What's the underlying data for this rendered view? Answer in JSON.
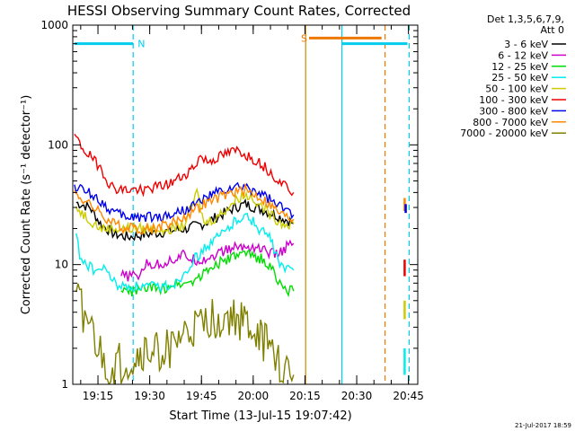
{
  "chart_data": {
    "type": "line",
    "title": "HESSI Observing Summary Count Rates, Corrected",
    "xlabel": "Start Time (13-Jul-15 19:07:42)",
    "ylabel": "Corrected Count Rate (s⁻¹ detector⁻¹)",
    "yscale": "log",
    "ylim": [
      1,
      1000
    ],
    "xlim_minutes": [
      0,
      100
    ],
    "x_start": "19:07:42",
    "x_ticks": [
      {
        "label": "19:15",
        "t": 7.3
      },
      {
        "label": "19:30",
        "t": 22.3
      },
      {
        "label": "19:45",
        "t": 37.3
      },
      {
        "label": "20:00",
        "t": 52.3
      },
      {
        "label": "20:15",
        "t": 67.3
      },
      {
        "label": "20:30",
        "t": 82.3
      },
      {
        "label": "20:45",
        "t": 97.3
      }
    ],
    "y_ticks": [
      {
        "label": "1",
        "v": 1
      },
      {
        "label": "10",
        "v": 10
      },
      {
        "label": "100",
        "v": 100
      },
      {
        "label": "1000",
        "v": 1000
      }
    ],
    "legend_header": [
      "Det 1,3,5,6,7,9,",
      "Att 0"
    ],
    "legend_placement": "right",
    "series": [
      {
        "name": "3 - 6 keV",
        "color": "#000000",
        "points": [
          [
            1,
            33
          ],
          [
            5,
            30
          ],
          [
            8,
            22
          ],
          [
            12,
            18
          ],
          [
            16,
            17
          ],
          [
            22,
            18
          ],
          [
            28,
            19
          ],
          [
            33,
            20
          ],
          [
            38,
            22
          ],
          [
            43,
            26
          ],
          [
            47,
            30
          ],
          [
            50,
            32
          ],
          [
            53,
            30
          ],
          [
            56,
            28
          ],
          [
            60,
            25
          ],
          [
            63,
            23
          ],
          [
            64,
            22
          ]
        ]
      },
      {
        "name": "6 - 12 keV",
        "color": "#cc00cc",
        "points": [
          [
            14,
            8
          ],
          [
            16,
            8
          ],
          [
            18,
            8
          ],
          [
            19,
            8
          ],
          [
            21,
            10
          ],
          [
            25,
            10
          ],
          [
            29,
            11
          ],
          [
            32,
            12
          ],
          [
            35,
            11
          ],
          [
            38,
            11
          ],
          [
            41,
            12
          ],
          [
            44,
            13
          ],
          [
            47,
            14
          ],
          [
            50,
            14
          ],
          [
            53,
            14
          ],
          [
            56,
            13
          ],
          [
            59,
            12
          ],
          [
            62,
            14
          ],
          [
            64,
            15
          ]
        ]
      },
      {
        "name": "12 - 25 keV",
        "color": "#00dd00",
        "points": [
          [
            14,
            6
          ],
          [
            18,
            6
          ],
          [
            22,
            6.5
          ],
          [
            25,
            6
          ],
          [
            29,
            7
          ],
          [
            33,
            7
          ],
          [
            37,
            8
          ],
          [
            41,
            10
          ],
          [
            45,
            11
          ],
          [
            48,
            12
          ],
          [
            52,
            12
          ],
          [
            55,
            11
          ],
          [
            58,
            9
          ],
          [
            60,
            7
          ],
          [
            62,
            6
          ],
          [
            64,
            6
          ]
        ]
      },
      {
        "name": "25 - 50 keV",
        "color": "#00eeee",
        "points": [
          [
            1,
            18
          ],
          [
            2,
            12
          ],
          [
            4,
            10
          ],
          [
            6,
            9
          ],
          [
            8,
            9
          ],
          [
            10,
            9
          ],
          [
            12,
            7
          ],
          [
            14,
            6.5
          ],
          [
            18,
            6.5
          ],
          [
            22,
            6.5
          ],
          [
            26,
            6.5
          ],
          [
            30,
            7
          ],
          [
            35,
            11
          ],
          [
            40,
            15
          ],
          [
            45,
            20
          ],
          [
            48,
            25
          ],
          [
            51,
            25
          ],
          [
            54,
            20
          ],
          [
            57,
            17
          ],
          [
            60,
            10
          ],
          [
            62,
            9
          ],
          [
            64,
            9
          ]
        ]
      },
      {
        "name": "50 - 100 keV",
        "color": "#cccc00",
        "points": [
          [
            1,
            30
          ],
          [
            4,
            25
          ],
          [
            8,
            20
          ],
          [
            12,
            20
          ],
          [
            16,
            20
          ],
          [
            20,
            20
          ],
          [
            24,
            20
          ],
          [
            28,
            20
          ],
          [
            32,
            21
          ],
          [
            34,
            28
          ],
          [
            36,
            40
          ],
          [
            38,
            22
          ],
          [
            42,
            25
          ],
          [
            46,
            32
          ],
          [
            49,
            38
          ],
          [
            52,
            37
          ],
          [
            55,
            30
          ],
          [
            58,
            25
          ],
          [
            61,
            22
          ],
          [
            64,
            22
          ]
        ]
      },
      {
        "name": "100 - 300 keV",
        "color": "#ee0000",
        "points": [
          [
            0.5,
            120
          ],
          [
            2,
            100
          ],
          [
            5,
            80
          ],
          [
            8,
            65
          ],
          [
            11,
            45
          ],
          [
            14,
            42
          ],
          [
            17,
            42
          ],
          [
            20,
            42
          ],
          [
            24,
            44
          ],
          [
            28,
            47
          ],
          [
            32,
            55
          ],
          [
            35,
            65
          ],
          [
            37,
            80
          ],
          [
            39,
            72
          ],
          [
            42,
            78
          ],
          [
            45,
            85
          ],
          [
            48,
            90
          ],
          [
            51,
            80
          ],
          [
            54,
            72
          ],
          [
            57,
            60
          ],
          [
            60,
            50
          ],
          [
            62,
            45
          ],
          [
            64,
            40
          ]
        ]
      },
      {
        "name": "300 - 800 keV",
        "color": "#0000ee",
        "points": [
          [
            0.5,
            45
          ],
          [
            3,
            42
          ],
          [
            6,
            38
          ],
          [
            9,
            32
          ],
          [
            12,
            27
          ],
          [
            15,
            25
          ],
          [
            18,
            25
          ],
          [
            22,
            25
          ],
          [
            26,
            25
          ],
          [
            30,
            27
          ],
          [
            34,
            30
          ],
          [
            38,
            35
          ],
          [
            42,
            40
          ],
          [
            46,
            43
          ],
          [
            50,
            44
          ],
          [
            54,
            40
          ],
          [
            57,
            35
          ],
          [
            60,
            30
          ],
          [
            62,
            28
          ],
          [
            64,
            26
          ]
        ]
      },
      {
        "name": "800 - 7000 keV",
        "color": "#ff8800",
        "points": [
          [
            0.5,
            40
          ],
          [
            3,
            35
          ],
          [
            6,
            30
          ],
          [
            9,
            25
          ],
          [
            12,
            22
          ],
          [
            15,
            20
          ],
          [
            18,
            20
          ],
          [
            22,
            20
          ],
          [
            26,
            21
          ],
          [
            30,
            23
          ],
          [
            34,
            27
          ],
          [
            38,
            32
          ],
          [
            42,
            36
          ],
          [
            46,
            40
          ],
          [
            50,
            42
          ],
          [
            54,
            37
          ],
          [
            57,
            32
          ],
          [
            60,
            27
          ],
          [
            62,
            25
          ],
          [
            64,
            24
          ]
        ]
      },
      {
        "name": "7000 - 20000 keV",
        "color": "#808000",
        "points": [
          [
            1,
            5
          ],
          [
            3,
            4
          ],
          [
            5,
            3
          ],
          [
            7,
            2
          ],
          [
            9,
            1.5
          ],
          [
            11,
            1.2
          ],
          [
            13,
            1.5
          ],
          [
            15,
            1.5
          ],
          [
            17,
            1.5
          ],
          [
            20,
            1.8
          ],
          [
            23,
            1.8
          ],
          [
            26,
            2
          ],
          [
            29,
            2
          ],
          [
            32,
            2.5
          ],
          [
            35,
            2.8
          ],
          [
            38,
            3
          ],
          [
            40,
            3.5
          ],
          [
            44,
            3.5
          ],
          [
            48,
            3.5
          ],
          [
            51,
            3
          ],
          [
            54,
            2.5
          ],
          [
            57,
            2
          ],
          [
            60,
            1.5
          ],
          [
            62,
            1.2
          ],
          [
            64,
            1.2
          ]
        ]
      }
    ],
    "post_gap_points": [
      {
        "color": "#00eeee",
        "t": 96.2,
        "v": [
          1.2,
          2
        ]
      },
      {
        "color": "#cccc00",
        "t": 96.2,
        "v": [
          3.5,
          5
        ]
      },
      {
        "color": "#ee0000",
        "t": 96.2,
        "v": [
          8,
          11
        ]
      },
      {
        "color": "#ff8800",
        "t": 96.2,
        "v": [
          28,
          36
        ]
      },
      {
        "color": "#0000ee",
        "t": 96.5,
        "v": [
          27,
          32
        ]
      }
    ],
    "orbit_bars": [
      {
        "label": "N",
        "color": "#00ccee",
        "t0": 0.5,
        "t1": 17.5,
        "v": 700
      },
      {
        "label": "S",
        "color": "#ee7700",
        "t0": 68.5,
        "t1": 89.5,
        "v": 780
      },
      {
        "label": "",
        "color": "#00ccee",
        "t0": 78,
        "t1": 97,
        "v": 700
      }
    ],
    "vertical_markers": [
      {
        "t": 17.5,
        "color": "#00ccee",
        "style": "dashed"
      },
      {
        "t": 67.5,
        "color": "#cc8800",
        "style": "solid"
      },
      {
        "t": 78,
        "color": "#00ccee",
        "style": "solid"
      },
      {
        "t": 90.5,
        "color": "#ee7700",
        "style": "dashed"
      },
      {
        "t": 97.5,
        "color": "#00ccee",
        "style": "dashed"
      }
    ],
    "grid": false
  },
  "footer_date": "21-Jul-2017 18:59"
}
